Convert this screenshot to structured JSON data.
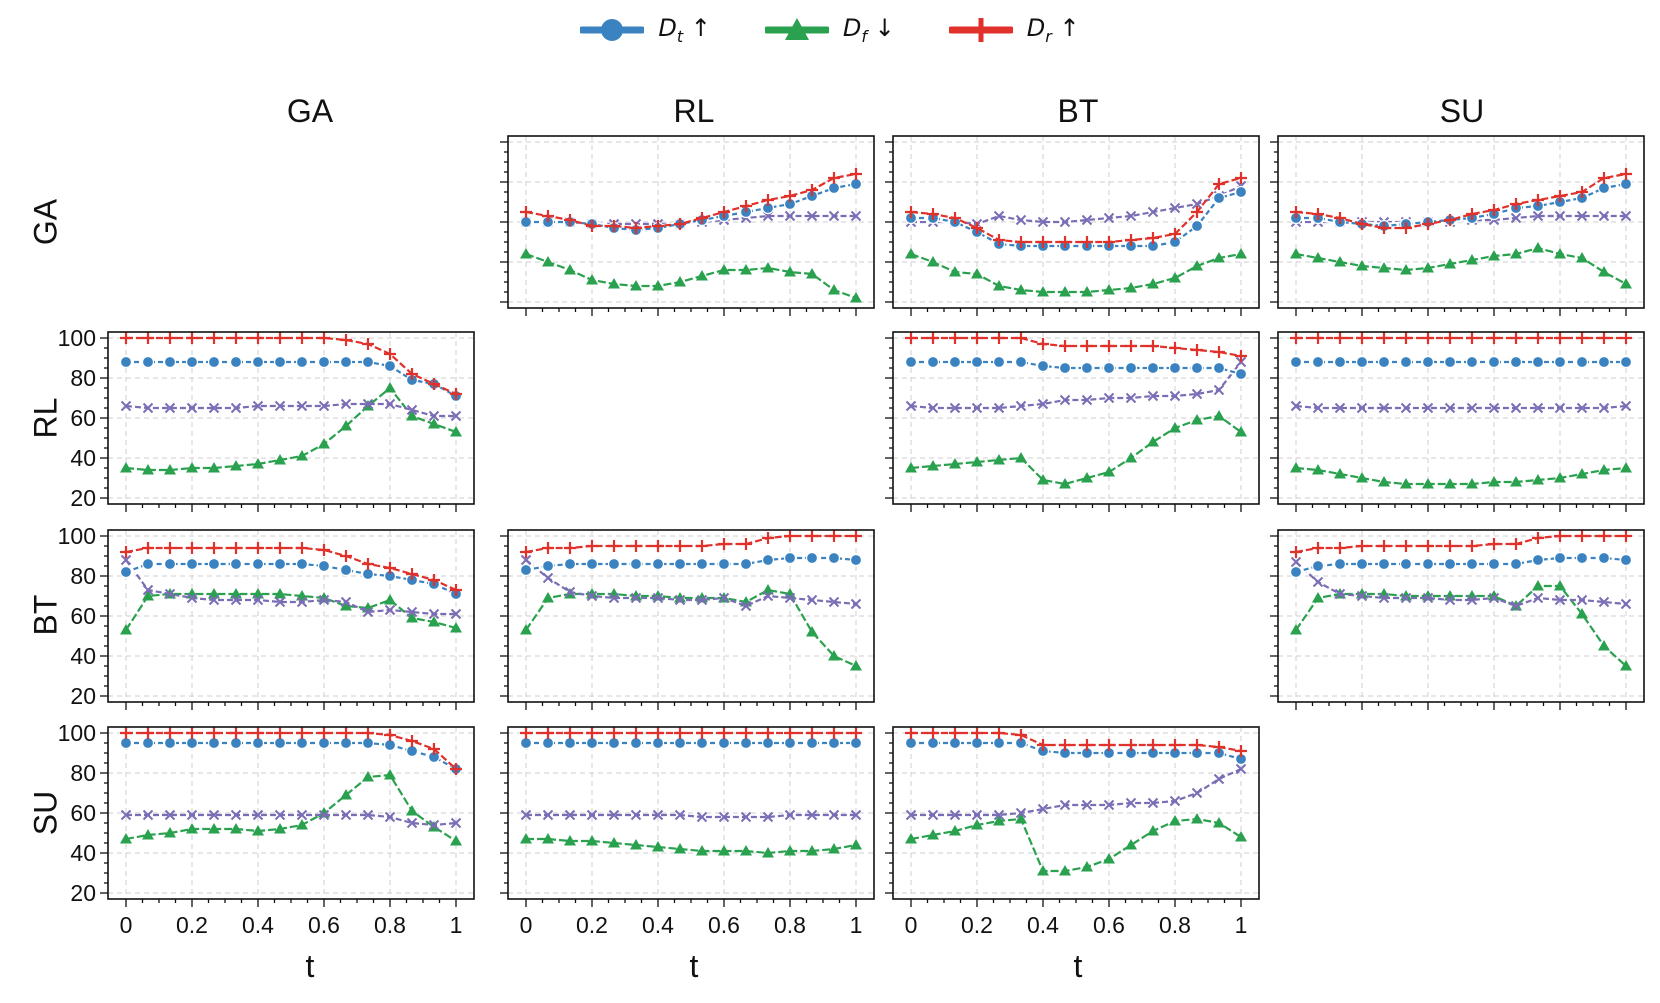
{
  "legend": [
    {
      "key": "Dt",
      "base": "D",
      "sub": "t",
      "arrow": "↑",
      "marker": "circle",
      "color": "#3a82c0"
    },
    {
      "key": "Df",
      "base": "D",
      "sub": "f",
      "arrow": "↓",
      "marker": "triangle",
      "color": "#2aa14e"
    },
    {
      "key": "Dr",
      "base": "D",
      "sub": "r",
      "arrow": "↑",
      "marker": "plus",
      "color": "#e0312b"
    }
  ],
  "colors": {
    "Dt": "#3a82c0",
    "Df": "#2aa14e",
    "Dr": "#e0312b",
    "avg": "#7b6db5"
  },
  "chart_data": {
    "type": "line",
    "layout": "4x4 grid of line plots (rows = first method, columns = second method)",
    "row_labels": [
      "GA",
      "RL",
      "BT",
      "SU"
    ],
    "col_labels": [
      "GA",
      "RL",
      "BT",
      "SU"
    ],
    "xlabel": "t",
    "xticks": [
      "0",
      "0.2",
      "0.4",
      "0.6",
      "0.8",
      "1"
    ],
    "yticks": [
      "20",
      "40",
      "60",
      "80",
      "100"
    ],
    "ylim": [
      20,
      100
    ],
    "xlim": [
      0,
      1
    ],
    "grid": true,
    "legend_position": "top-center",
    "series_order": [
      "Df",
      "avg",
      "Dt",
      "Dr"
    ],
    "x": [
      0,
      0.0667,
      0.1333,
      0.2,
      0.2667,
      0.3333,
      0.4,
      0.4667,
      0.5333,
      0.6,
      0.6667,
      0.7333,
      0.8,
      0.8667,
      0.9333,
      1
    ],
    "panels": [
      {
        "row": "GA",
        "col": "RL",
        "show_y_ticks": false,
        "show_x_ticks": false,
        "Dt": [
          60,
          60,
          60,
          59,
          57,
          56,
          57,
          59,
          61,
          63,
          65,
          67,
          69,
          73,
          77,
          79
        ],
        "Df": [
          44,
          40,
          36,
          31,
          29,
          28,
          28,
          30,
          33,
          36,
          36,
          37,
          35,
          34,
          26,
          22
        ],
        "Dr": [
          65,
          63,
          61,
          58,
          58,
          57,
          58,
          59,
          62,
          65,
          68,
          71,
          73,
          76,
          82,
          84
        ],
        "avg": [
          60,
          60,
          60,
          59,
          59,
          59,
          59,
          59,
          60,
          61,
          62,
          63,
          63,
          63,
          63,
          63
        ]
      },
      {
        "row": "GA",
        "col": "BT",
        "show_y_ticks": false,
        "show_x_ticks": false,
        "Dt": [
          62,
          62,
          60,
          55,
          49,
          48,
          48,
          48,
          48,
          48,
          48,
          48,
          50,
          58,
          72,
          75
        ],
        "Df": [
          44,
          40,
          35,
          34,
          28,
          26,
          25,
          25,
          25,
          26,
          27,
          29,
          32,
          38,
          42,
          44
        ],
        "Dr": [
          65,
          64,
          62,
          57,
          51,
          50,
          50,
          50,
          50,
          50,
          51,
          52,
          54,
          65,
          79,
          82
        ],
        "avg": [
          60,
          60,
          60,
          59,
          63,
          61,
          60,
          60,
          61,
          62,
          63,
          65,
          67,
          69,
          73,
          78
        ]
      },
      {
        "row": "GA",
        "col": "SU",
        "show_y_ticks": false,
        "show_x_ticks": false,
        "Dt": [
          62,
          62,
          60,
          59,
          58,
          59,
          60,
          61,
          62,
          64,
          67,
          68,
          70,
          72,
          77,
          79
        ],
        "Df": [
          44,
          42,
          40,
          38,
          37,
          36,
          37,
          39,
          41,
          43,
          44,
          47,
          44,
          42,
          35,
          29
        ],
        "Dr": [
          65,
          64,
          62,
          59,
          57,
          57,
          59,
          61,
          64,
          66,
          69,
          71,
          73,
          75,
          82,
          84
        ],
        "avg": [
          60,
          60,
          60,
          60,
          60,
          60,
          60,
          60,
          61,
          61,
          62,
          63,
          63,
          63,
          63,
          63
        ]
      },
      {
        "row": "RL",
        "col": "GA",
        "show_y_ticks": true,
        "show_x_ticks": false,
        "Dt": [
          88,
          88,
          88,
          88,
          88,
          88,
          88,
          88,
          88,
          88,
          88,
          88,
          86,
          79,
          77,
          71
        ],
        "Df": [
          35,
          34,
          34,
          35,
          35,
          36,
          37,
          39,
          41,
          47,
          56,
          66,
          75,
          61,
          57,
          53
        ],
        "Dr": [
          100,
          100,
          100,
          100,
          100,
          100,
          100,
          100,
          100,
          100,
          99,
          97,
          92,
          82,
          77,
          72
        ],
        "avg": [
          66,
          65,
          65,
          65,
          65,
          65,
          66,
          66,
          66,
          66,
          67,
          67,
          67,
          64,
          61,
          61
        ]
      },
      {
        "row": "RL",
        "col": "BT",
        "show_y_ticks": false,
        "show_x_ticks": false,
        "Dt": [
          88,
          88,
          88,
          88,
          88,
          88,
          86,
          85,
          85,
          85,
          85,
          85,
          85,
          85,
          85,
          82
        ],
        "Df": [
          35,
          36,
          37,
          38,
          39,
          40,
          29,
          27,
          30,
          33,
          40,
          48,
          55,
          59,
          61,
          53
        ],
        "Dr": [
          100,
          100,
          100,
          100,
          100,
          100,
          97,
          96,
          96,
          96,
          96,
          96,
          95,
          94,
          93,
          91
        ],
        "avg": [
          66,
          65,
          65,
          65,
          65,
          66,
          67,
          69,
          69,
          70,
          70,
          71,
          71,
          72,
          74,
          88
        ]
      },
      {
        "row": "RL",
        "col": "SU",
        "show_y_ticks": false,
        "show_x_ticks": false,
        "Dt": [
          88,
          88,
          88,
          88,
          88,
          88,
          88,
          88,
          88,
          88,
          88,
          88,
          88,
          88,
          88,
          88
        ],
        "Df": [
          35,
          34,
          32,
          30,
          28,
          27,
          27,
          27,
          27,
          28,
          28,
          29,
          30,
          32,
          34,
          35
        ],
        "Dr": [
          100,
          100,
          100,
          100,
          100,
          100,
          100,
          100,
          100,
          100,
          100,
          100,
          100,
          100,
          100,
          100
        ],
        "avg": [
          66,
          65,
          65,
          65,
          65,
          65,
          65,
          65,
          65,
          65,
          65,
          65,
          65,
          65,
          65,
          66
        ]
      },
      {
        "row": "BT",
        "col": "GA",
        "show_y_ticks": true,
        "show_x_ticks": false,
        "Dt": [
          82,
          86,
          86,
          86,
          86,
          86,
          86,
          86,
          86,
          85,
          83,
          81,
          80,
          78,
          76,
          71
        ],
        "Df": [
          53,
          70,
          71,
          71,
          71,
          71,
          71,
          71,
          70,
          69,
          65,
          64,
          68,
          59,
          57,
          54
        ],
        "Dr": [
          92,
          94,
          94,
          94,
          94,
          94,
          94,
          94,
          94,
          93,
          90,
          86,
          84,
          81,
          78,
          73
        ],
        "avg": [
          88,
          73,
          71,
          69,
          68,
          68,
          68,
          67,
          67,
          68,
          67,
          62,
          63,
          62,
          61,
          61
        ]
      },
      {
        "row": "BT",
        "col": "RL",
        "show_y_ticks": false,
        "show_x_ticks": false,
        "Dt": [
          83,
          85,
          86,
          86,
          86,
          86,
          86,
          86,
          86,
          86,
          86,
          88,
          89,
          89,
          89,
          88
        ],
        "Df": [
          53,
          69,
          71,
          71,
          71,
          70,
          70,
          69,
          69,
          69,
          67,
          73,
          71,
          52,
          40,
          35
        ],
        "Dr": [
          92,
          94,
          94,
          95,
          95,
          95,
          95,
          95,
          95,
          96,
          96,
          99,
          100,
          100,
          100,
          100
        ],
        "avg": [
          88,
          79,
          72,
          70,
          69,
          69,
          69,
          68,
          68,
          69,
          65,
          70,
          69,
          68,
          67,
          66
        ]
      },
      {
        "row": "BT",
        "col": "SU",
        "show_y_ticks": false,
        "show_x_ticks": false,
        "Dt": [
          82,
          85,
          86,
          86,
          86,
          86,
          86,
          86,
          86,
          86,
          86,
          88,
          89,
          89,
          89,
          88
        ],
        "Df": [
          53,
          69,
          71,
          71,
          71,
          70,
          70,
          70,
          70,
          70,
          65,
          75,
          75,
          61,
          45,
          35
        ],
        "Dr": [
          92,
          94,
          94,
          95,
          95,
          95,
          95,
          95,
          95,
          96,
          96,
          99,
          100,
          100,
          100,
          100
        ],
        "avg": [
          87,
          77,
          71,
          70,
          69,
          69,
          69,
          68,
          68,
          69,
          65,
          69,
          68,
          68,
          67,
          66
        ]
      },
      {
        "row": "SU",
        "col": "GA",
        "show_y_ticks": true,
        "show_x_ticks": true,
        "Dt": [
          95,
          95,
          95,
          95,
          95,
          95,
          95,
          95,
          95,
          95,
          95,
          95,
          94,
          91,
          88,
          82
        ],
        "Df": [
          47,
          49,
          50,
          52,
          52,
          52,
          51,
          52,
          54,
          60,
          69,
          78,
          79,
          61,
          53,
          46
        ],
        "Dr": [
          100,
          100,
          100,
          100,
          100,
          100,
          100,
          100,
          100,
          100,
          100,
          100,
          99,
          96,
          92,
          82
        ],
        "avg": [
          59,
          59,
          59,
          59,
          59,
          59,
          59,
          59,
          59,
          59,
          59,
          59,
          58,
          55,
          54,
          55
        ]
      },
      {
        "row": "SU",
        "col": "RL",
        "show_y_ticks": false,
        "show_x_ticks": true,
        "Dt": [
          95,
          95,
          95,
          95,
          95,
          95,
          95,
          95,
          95,
          95,
          95,
          95,
          95,
          95,
          95,
          95
        ],
        "Df": [
          47,
          47,
          46,
          46,
          45,
          44,
          43,
          42,
          41,
          41,
          41,
          40,
          41,
          41,
          42,
          44
        ],
        "Dr": [
          100,
          100,
          100,
          100,
          100,
          100,
          100,
          100,
          100,
          100,
          100,
          100,
          100,
          100,
          100,
          100
        ],
        "avg": [
          59,
          59,
          59,
          59,
          59,
          59,
          59,
          59,
          58,
          58,
          58,
          58,
          59,
          59,
          59,
          59
        ]
      },
      {
        "row": "SU",
        "col": "BT",
        "show_y_ticks": false,
        "show_x_ticks": true,
        "Dt": [
          95,
          95,
          95,
          95,
          95,
          95,
          91,
          90,
          90,
          90,
          90,
          90,
          90,
          90,
          90,
          87
        ],
        "Df": [
          47,
          49,
          51,
          54,
          56,
          57,
          31,
          31,
          33,
          37,
          44,
          51,
          56,
          57,
          55,
          48
        ],
        "Dr": [
          100,
          100,
          100,
          100,
          100,
          99,
          94,
          94,
          94,
          94,
          94,
          94,
          94,
          94,
          93,
          91
        ],
        "avg": [
          59,
          59,
          59,
          59,
          59,
          60,
          62,
          64,
          64,
          64,
          65,
          65,
          66,
          70,
          77,
          82
        ]
      }
    ]
  }
}
